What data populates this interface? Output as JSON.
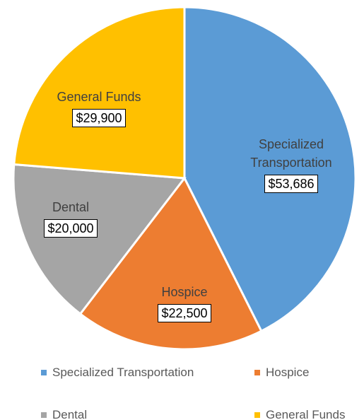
{
  "chart_data": {
    "type": "pie",
    "categories": [
      "Specialized Transportation",
      "Hospice",
      "Dental",
      "General Funds"
    ],
    "values": [
      53686,
      22500,
      20000,
      29900
    ],
    "value_labels": [
      "$53,686",
      "$22,500",
      "$20,000",
      "$29,900"
    ],
    "colors": [
      "#5b9bd5",
      "#ed7d31",
      "#a5a5a5",
      "#ffc000"
    ],
    "legend": "bottom"
  }
}
